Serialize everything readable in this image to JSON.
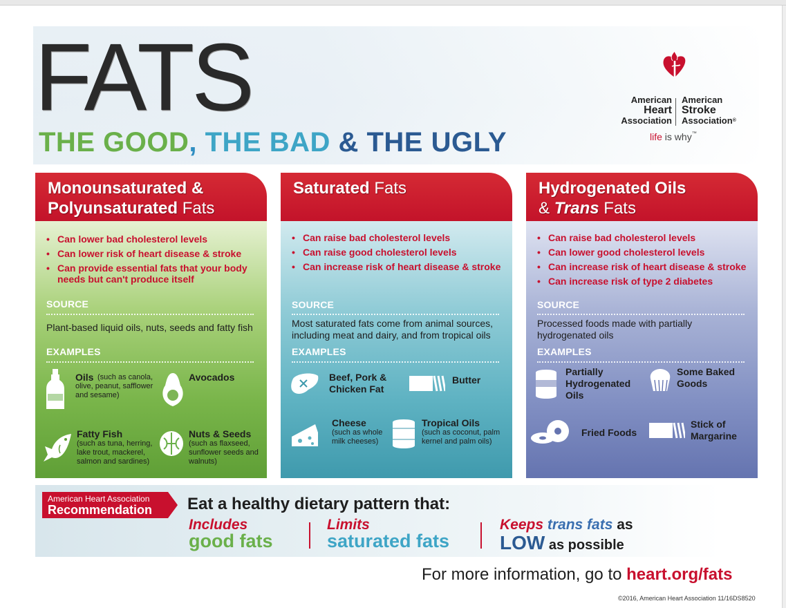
{
  "header": {
    "title": "FATS",
    "subtitle": {
      "good": "THE GOOD",
      "comma": ",",
      "bad": " THE BAD",
      "ugly": " & THE UGLY"
    }
  },
  "logo": {
    "left_line1": "American",
    "left_line2": "Heart",
    "left_line3": "Association",
    "right_line1": "American",
    "right_line2": "Stroke",
    "right_line3": "Association",
    "registered": "®",
    "tagline_life": "life",
    "tagline_is": " is why",
    "tagline_tm": "™"
  },
  "panels": [
    {
      "title_line1_bold": "Monounsaturated &",
      "title_line2_bold": "Polyunsaturated",
      "title_line2_light": " Fats",
      "bullets": [
        "Can lower bad cholesterol levels",
        "Can lower risk of heart disease & stroke",
        "Can provide essential fats that your body needs but can't produce itself"
      ],
      "source_label": "SOURCE",
      "source_text": "Plant-based liquid oils, nuts, seeds and fatty fish",
      "examples_label": "EXAMPLES",
      "examples": [
        {
          "title": "Oils",
          "note": "(such as canola, olive, peanut, safflower and sesame)",
          "icon": "oil-bottle-icon"
        },
        {
          "title": "Avocados",
          "note": "",
          "icon": "avocado-icon"
        },
        {
          "title": "Fatty Fish",
          "note": "(such as tuna, herring, lake trout, mackerel, salmon and sardines)",
          "icon": "fish-icon"
        },
        {
          "title": "Nuts & Seeds",
          "note": "(such as flaxseed, sunflower seeds and walnuts)",
          "icon": "walnut-icon"
        }
      ]
    },
    {
      "title_line1_bold": "Saturated",
      "title_line1_light": " Fats",
      "bullets": [
        "Can raise bad cholesterol levels",
        "Can raise good cholesterol levels",
        "Can increase risk of heart disease & stroke"
      ],
      "source_label": "SOURCE",
      "source_text": "Most saturated fats come from animal sources, including meat and dairy, and from tropical oils",
      "examples_label": "EXAMPLES",
      "examples": [
        {
          "title": "Beef, Pork & Chicken Fat",
          "note": "",
          "icon": "steak-icon"
        },
        {
          "title": "Butter",
          "note": "",
          "icon": "butter-icon"
        },
        {
          "title": "Cheese",
          "note": "(such as whole milk cheeses)",
          "icon": "cheese-icon"
        },
        {
          "title": "Tropical Oils",
          "note": "(such as coconut, palm kernel and palm oils)",
          "icon": "oil-can-icon"
        }
      ]
    },
    {
      "title_line1_bold": "Hydrogenated Oils",
      "title_line2_amp": "& ",
      "title_line2_italic": "Trans",
      "title_line2_light": " Fats",
      "bullets": [
        "Can raise bad cholesterol levels",
        "Can lower good cholesterol levels",
        "Can increase risk of heart disease & stroke",
        "Can increase risk of type 2 diabetes"
      ],
      "source_label": "SOURCE",
      "source_text": "Processed foods made with partially hydrogenated oils",
      "examples_label": "EXAMPLES",
      "examples": [
        {
          "title": "Partially Hydrogenated Oils",
          "note": "",
          "icon": "shortening-can-icon"
        },
        {
          "title": "Some Baked Goods",
          "note": "",
          "icon": "cupcake-icon"
        },
        {
          "title": "Fried Foods",
          "note": "",
          "icon": "donut-icon"
        },
        {
          "title": "Stick of Margarine",
          "note": "",
          "icon": "margarine-icon"
        }
      ]
    }
  ],
  "recommendation": {
    "badge_small": "American Heart Association",
    "badge_big": "Recommendation",
    "headline": "Eat a healthy dietary pattern that:",
    "col1_l1": "Includes",
    "col1_l2": "good fats",
    "col2_l1": "Limits",
    "col2_l2": "saturated fats",
    "col3_l1a": "Keeps ",
    "col3_l1b": "trans fats",
    "col3_l1c": " as",
    "col3_l2a": "LOW",
    "col3_l2b": " as possible"
  },
  "footer": {
    "more_info": "For more information, go to ",
    "url": "heart.org/fats",
    "copyright": "©2016, American Heart Association   11/16DS8520"
  },
  "colors": {
    "red": "#c8102e",
    "green": "#6ab04a",
    "teal": "#3ea5c6",
    "navy": "#2b5a92"
  }
}
